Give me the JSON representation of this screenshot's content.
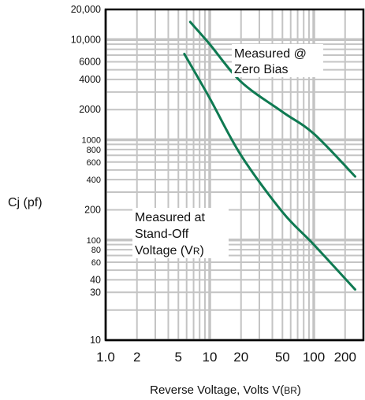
{
  "chart_data": {
    "type": "line",
    "xscale": "log",
    "yscale": "log",
    "xlim": [
      1,
      300
    ],
    "ylim": [
      10,
      20000
    ],
    "grid": true,
    "ylabel": "Cj  (pf)",
    "xlabel_main": "Reverse Voltage, Volts V(",
    "xlabel_sub": "BR",
    "xlabel_close": ")",
    "x_tick_labels": [
      {
        "value": 1,
        "label": "1.0"
      },
      {
        "value": 2,
        "label": "2"
      },
      {
        "value": 5,
        "label": "5"
      },
      {
        "value": 10,
        "label": "10"
      },
      {
        "value": 20,
        "label": "20"
      },
      {
        "value": 50,
        "label": "50"
      },
      {
        "value": 100,
        "label": "100"
      },
      {
        "value": 200,
        "label": "200"
      }
    ],
    "y_tick_labels": [
      {
        "value": 20000,
        "label": "20,000"
      },
      {
        "value": 10000,
        "label": "10,000"
      },
      {
        "value": 6000,
        "label": "6000"
      },
      {
        "value": 4000,
        "label": "4000"
      },
      {
        "value": 2000,
        "label": "2000"
      },
      {
        "value": 1000,
        "label": "1000"
      },
      {
        "value": 800,
        "label": "800"
      },
      {
        "value": 600,
        "label": "600"
      },
      {
        "value": 400,
        "label": "400"
      },
      {
        "value": 200,
        "label": "200"
      },
      {
        "value": 100,
        "label": "100"
      },
      {
        "value": 80,
        "label": "80"
      },
      {
        "value": 60,
        "label": "60"
      },
      {
        "value": 40,
        "label": "40"
      },
      {
        "value": 30,
        "label": "30"
      },
      {
        "value": 10,
        "label": "10"
      }
    ],
    "series": [
      {
        "name": "Measured @ Zero Bias",
        "color": "#0f7a52",
        "points": [
          [
            6.5,
            15000
          ],
          [
            10,
            9000
          ],
          [
            20,
            3800
          ],
          [
            50,
            1900
          ],
          [
            100,
            1150
          ],
          [
            250,
            430
          ]
        ]
      },
      {
        "name": "Measured at Stand-Off Voltage (VR)",
        "color": "#0f7a52",
        "points": [
          [
            5.7,
            7200
          ],
          [
            10,
            2600
          ],
          [
            20,
            700
          ],
          [
            50,
            190
          ],
          [
            100,
            90
          ],
          [
            250,
            32
          ]
        ]
      }
    ],
    "annotations": [
      {
        "lines": [
          "Measured @",
          "Zero Bias"
        ]
      },
      {
        "lines": [
          "Measured at",
          "Stand-Off"
        ],
        "last_main": "Voltage (V",
        "last_sub": "R",
        "last_close": ")"
      }
    ],
    "colors": {
      "grid": "#c4c4c4",
      "axis": "#000000",
      "curve": "#0f7a52"
    }
  }
}
